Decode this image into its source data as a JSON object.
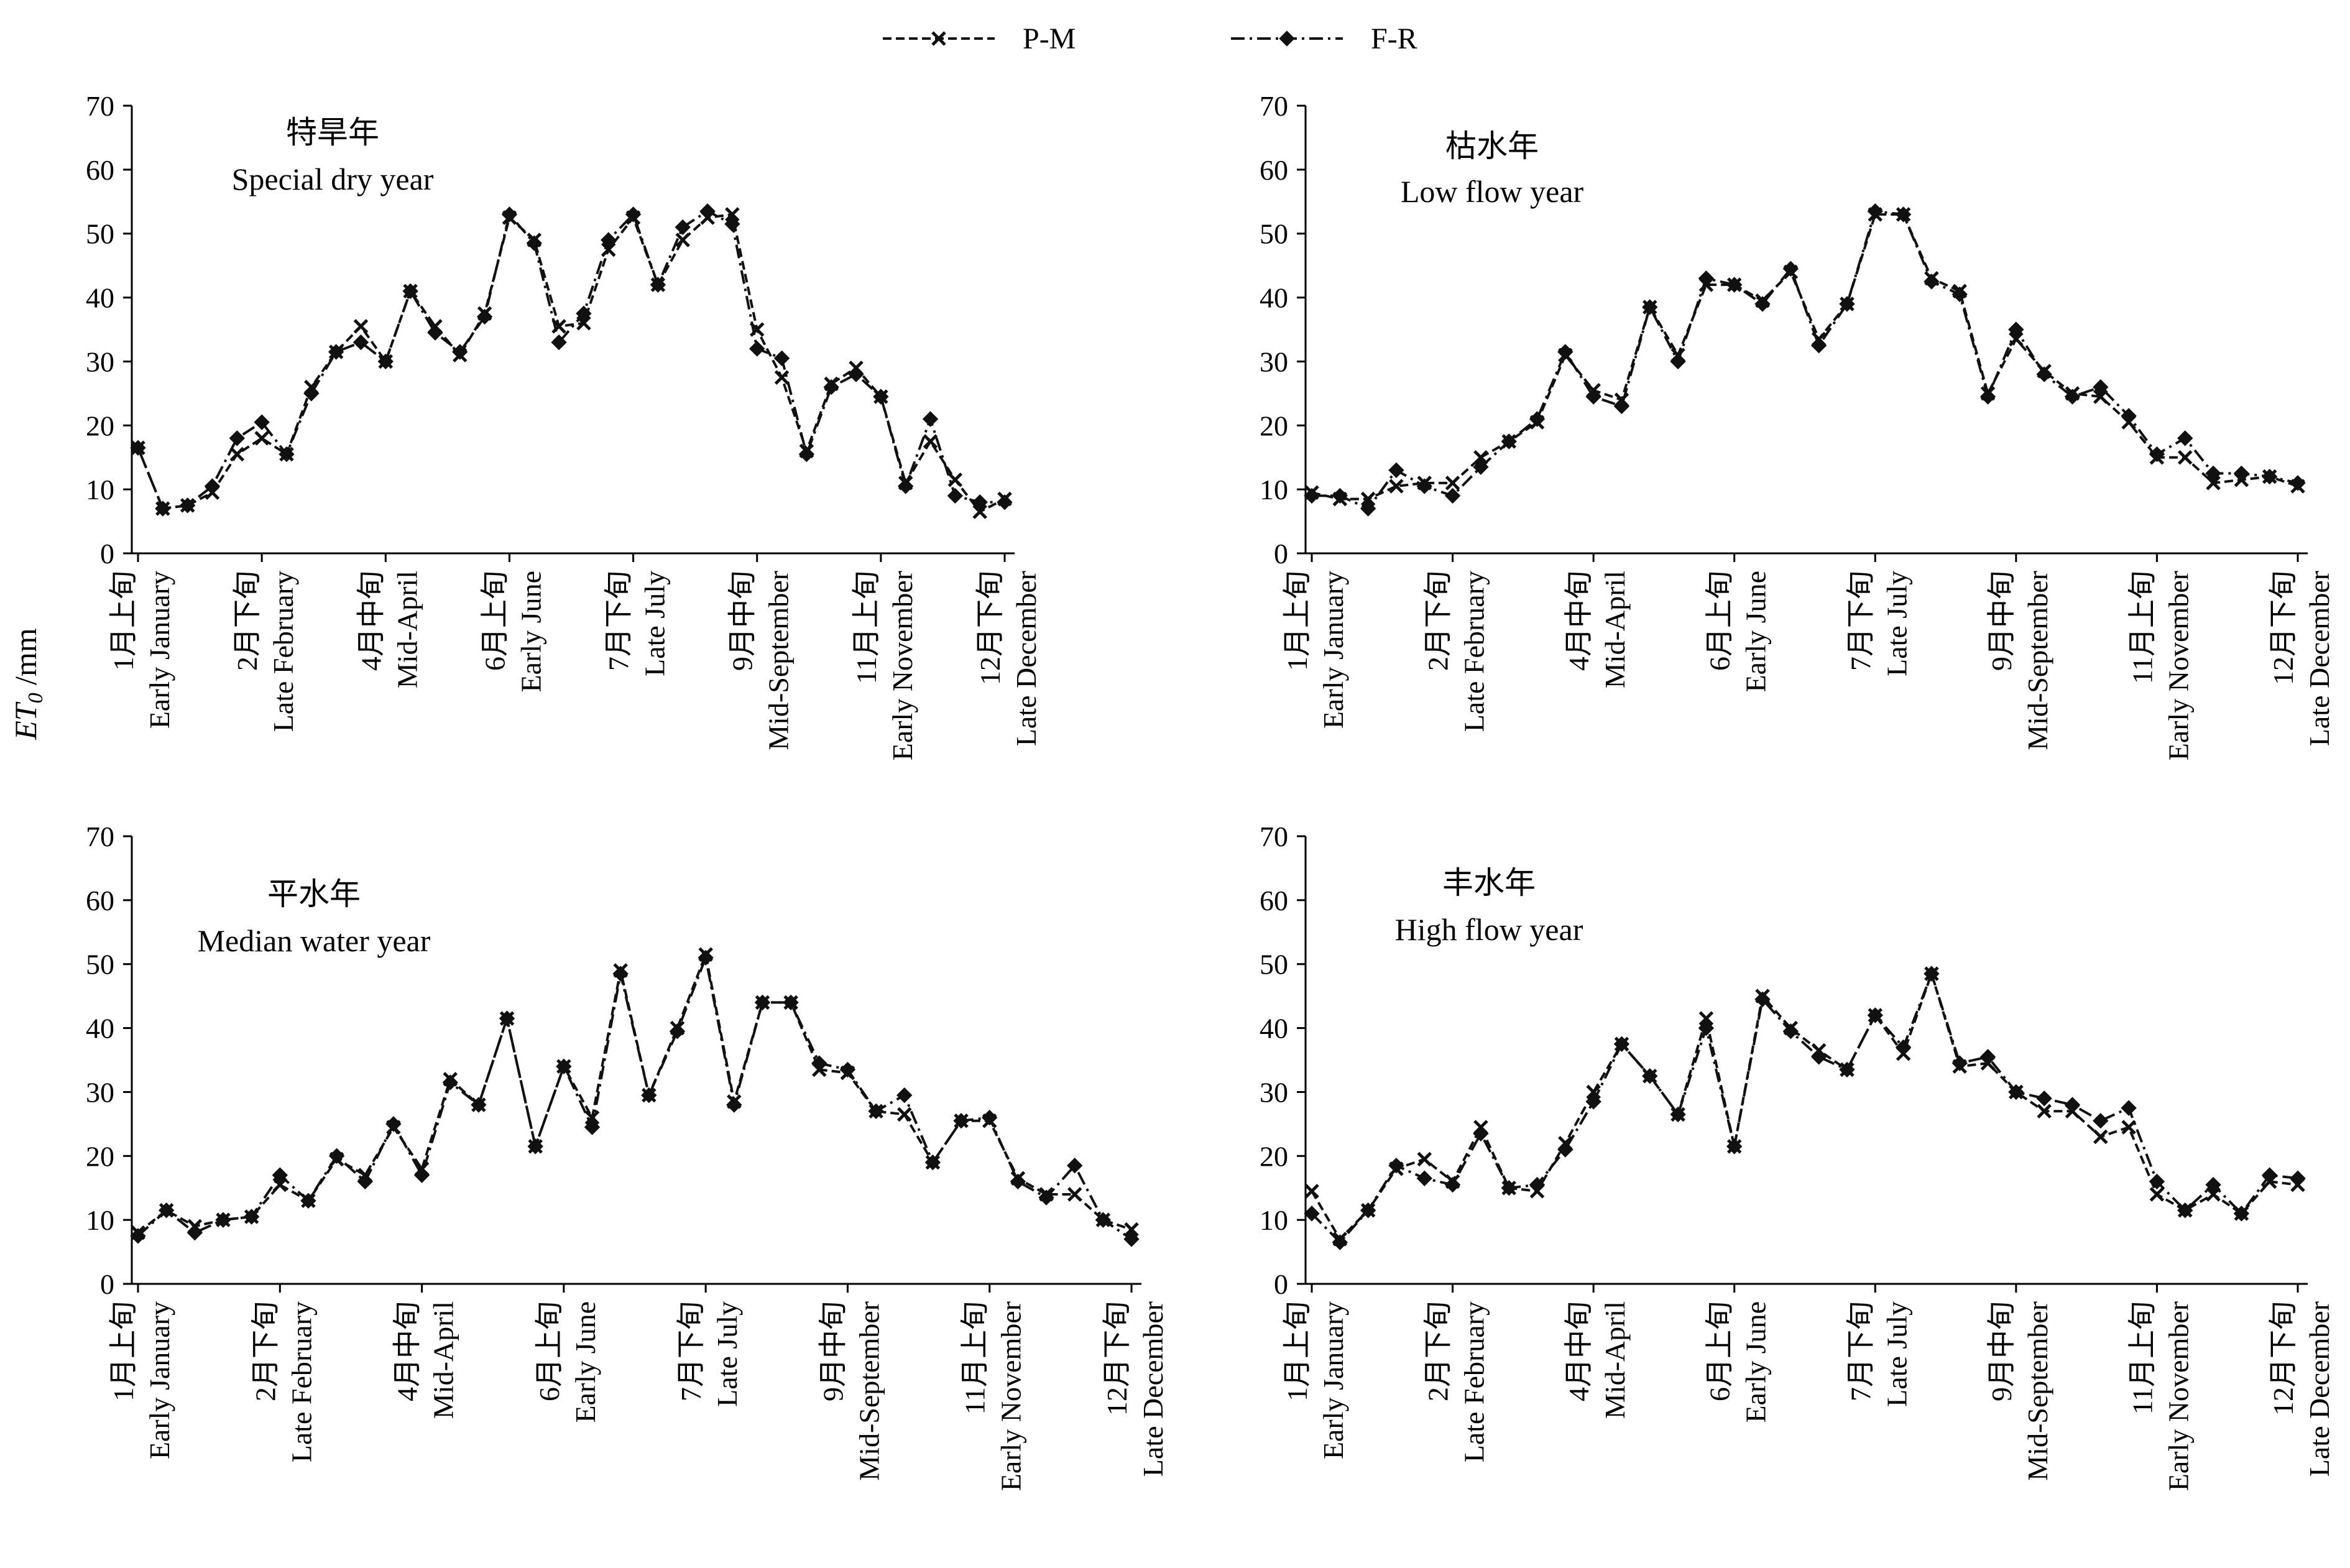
{
  "legend": [
    {
      "name": "P-M",
      "marker": "x-icon",
      "dash": "dashed"
    },
    {
      "name": "F-R",
      "marker": "diamond-icon",
      "dash": "dash-dot"
    }
  ],
  "ylabel_main": "ET",
  "ylabel_sub": "0",
  "ylabel_unit": " /mm",
  "chart_data": [
    {
      "type": "line",
      "title_cn": "特旱年",
      "title_en": "Special dry year",
      "ylim": [
        0,
        70
      ],
      "yticks": [
        0,
        10,
        20,
        30,
        40,
        50,
        60,
        70
      ],
      "x_tick_labels": [
        [
          "1月上旬",
          "Early January"
        ],
        [
          "2月下旬",
          "Late February"
        ],
        [
          "4月中旬",
          "Mid-April"
        ],
        [
          "6月上旬",
          "Early June"
        ],
        [
          "7月下旬",
          "Late July"
        ],
        [
          "9月中旬",
          "Mid-September"
        ],
        [
          "11月上旬",
          "Early November"
        ],
        [
          "12月下旬",
          "Late December"
        ]
      ],
      "series": [
        {
          "name": "P-M",
          "values": [
            16.5,
            7,
            7.5,
            9.5,
            15.5,
            18,
            15.5,
            26,
            31.5,
            35.5,
            30,
            41,
            35.5,
            31,
            37.5,
            52.5,
            49,
            35.5,
            36,
            47.5,
            52.5,
            42,
            49,
            52.5,
            53,
            35,
            27.5,
            16,
            26.5,
            29,
            24.5,
            11,
            17.5,
            11.5,
            6.5,
            8.5
          ]
        },
        {
          "name": "F-R",
          "values": [
            16.5,
            7,
            7.5,
            10.5,
            18,
            20.5,
            15.5,
            25,
            31.5,
            33,
            30,
            41,
            34.5,
            31.5,
            37,
            53,
            48.5,
            33,
            37.5,
            49,
            53,
            42,
            51,
            53.5,
            51.5,
            32,
            30.5,
            15.5,
            26,
            28,
            24.5,
            10.5,
            21,
            9,
            8,
            8
          ]
        }
      ]
    },
    {
      "type": "line",
      "title_cn": "枯水年",
      "title_en": "Low flow year",
      "ylim": [
        0,
        70
      ],
      "yticks": [
        0,
        10,
        20,
        30,
        40,
        50,
        60,
        70
      ],
      "x_tick_labels": [
        [
          "1月上旬",
          "Early January"
        ],
        [
          "2月下旬",
          "Late February"
        ],
        [
          "4月中旬",
          "Mid-April"
        ],
        [
          "6月上旬",
          "Early June"
        ],
        [
          "7月下旬",
          "Late July"
        ],
        [
          "9月中旬",
          "Mid-September"
        ],
        [
          "11月上旬",
          "Early November"
        ],
        [
          "12月下旬",
          "Late December"
        ]
      ],
      "series": [
        {
          "name": "P-M",
          "values": [
            9.5,
            8.5,
            8.5,
            10.5,
            11,
            11,
            15,
            17.5,
            20.5,
            31,
            25.5,
            24,
            38.5,
            31,
            42,
            42,
            39.5,
            44,
            33.5,
            39,
            53,
            53,
            43,
            41,
            25,
            33.5,
            28.5,
            25,
            24.5,
            20.5,
            15,
            15,
            11,
            11.5,
            12,
            10.5
          ]
        },
        {
          "name": "F-R",
          "values": [
            9,
            9,
            7,
            13,
            10.5,
            9,
            13.5,
            17.5,
            21,
            31.5,
            24.5,
            23,
            38.5,
            30,
            43,
            42,
            39,
            44.5,
            32.5,
            39,
            53.5,
            53,
            42.5,
            40.5,
            24.5,
            35,
            28,
            24.5,
            26,
            21.5,
            15.5,
            18,
            12.5,
            12.5,
            12,
            11
          ]
        }
      ]
    },
    {
      "type": "line",
      "title_cn": "平水年",
      "title_en": "Median water year",
      "ylim": [
        0,
        70
      ],
      "yticks": [
        0,
        10,
        20,
        30,
        40,
        50,
        60,
        70
      ],
      "x_tick_labels": [
        [
          "1月上旬",
          "Early January"
        ],
        [
          "2月下旬",
          "Late February"
        ],
        [
          "4月中旬",
          "Mid-April"
        ],
        [
          "6月上旬",
          "Early June"
        ],
        [
          "7月下旬",
          "Late July"
        ],
        [
          "9月中旬",
          "Mid-September"
        ],
        [
          "11月上旬",
          "Early November"
        ],
        [
          "12月下旬",
          "Late December"
        ]
      ],
      "series": [
        {
          "name": "P-M",
          "values": [
            8,
            11.5,
            9,
            10,
            10.5,
            15.5,
            13,
            19.5,
            17,
            24.5,
            18,
            32,
            28,
            41.5,
            21.5,
            34,
            26,
            49,
            29.5,
            40,
            51.5,
            28.5,
            44,
            44,
            33.5,
            33,
            27,
            26.5,
            19,
            25.5,
            25.5,
            16.5,
            14,
            14,
            10,
            8.5
          ]
        },
        {
          "name": "F-R",
          "values": [
            7.5,
            11.5,
            8,
            10,
            10.5,
            17,
            13,
            20,
            16,
            25,
            17,
            31.5,
            28,
            41.5,
            21.5,
            34,
            24.5,
            48.5,
            29.5,
            39.5,
            51,
            28,
            44,
            44,
            34.5,
            33.5,
            27,
            29.5,
            19,
            25.5,
            26,
            16,
            13.5,
            18.5,
            10,
            7
          ]
        }
      ]
    },
    {
      "type": "line",
      "title_cn": "丰水年",
      "title_en": "High flow year",
      "ylim": [
        0,
        70
      ],
      "yticks": [
        0,
        10,
        20,
        30,
        40,
        50,
        60,
        70
      ],
      "x_tick_labels": [
        [
          "1月上旬",
          "Early January"
        ],
        [
          "2月下旬",
          "Late February"
        ],
        [
          "4月中旬",
          "Mid-April"
        ],
        [
          "6月上旬",
          "Early June"
        ],
        [
          "7月下旬",
          "Late July"
        ],
        [
          "9月中旬",
          "Mid-September"
        ],
        [
          "11月上旬",
          "Early November"
        ],
        [
          "12月下旬",
          "Late December"
        ]
      ],
      "series": [
        {
          "name": "P-M",
          "values": [
            14.5,
            7,
            11.5,
            18,
            19.5,
            16,
            24.5,
            15,
            14.5,
            22,
            30,
            37.5,
            32.5,
            26.5,
            41.5,
            21.5,
            45,
            40,
            36.5,
            33.5,
            42,
            36,
            48.5,
            34,
            34.5,
            30,
            27,
            27,
            23,
            24.5,
            14,
            11.5,
            14,
            11,
            16,
            15.5
          ]
        },
        {
          "name": "F-R",
          "values": [
            11,
            6.5,
            11.5,
            18.5,
            16.5,
            15.5,
            23.5,
            15,
            15.5,
            21,
            28.5,
            37.5,
            32.5,
            26.5,
            40,
            21.5,
            44.5,
            39.5,
            35.5,
            33.5,
            42,
            37,
            48.5,
            34.5,
            35.5,
            30,
            29,
            28,
            25.5,
            27.5,
            16,
            11.5,
            15.5,
            11,
            17,
            16.5
          ]
        }
      ]
    }
  ]
}
